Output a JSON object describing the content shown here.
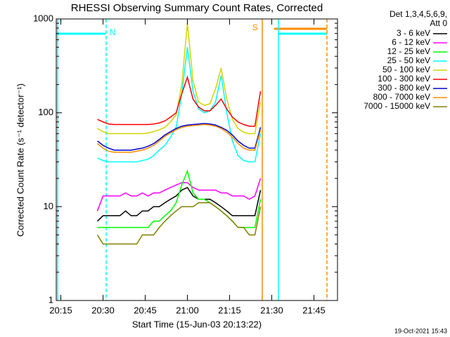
{
  "chart_data": {
    "type": "line",
    "title": "RHESSI Observing Summary Count Rates, Corrected",
    "x_label": "Start Time (15-Jun-03 20:13:22)",
    "y_label": "Corrected Count Rate (s⁻¹ detector⁻¹)",
    "legend_header": [
      "Det 1,3,4,5,6,9,",
      "Att 0"
    ],
    "footer": "19-Oct-2021 15:43",
    "log_y": true,
    "xlim": [
      1213.37,
      1313.37
    ],
    "xticks": [
      {
        "value": 1215,
        "label": "20:15"
      },
      {
        "value": 1230,
        "label": "20:30"
      },
      {
        "value": 1245,
        "label": "20:45"
      },
      {
        "value": 1260,
        "label": "21:00"
      },
      {
        "value": 1275,
        "label": "21:15"
      },
      {
        "value": 1290,
        "label": "21:30"
      },
      {
        "value": 1305,
        "label": "21:45"
      }
    ],
    "ylim": [
      1,
      1000
    ],
    "yticks": [
      1,
      10,
      100,
      1000
    ],
    "x": [
      1228,
      1230,
      1232,
      1234,
      1236,
      1238,
      1240,
      1242,
      1244,
      1246,
      1248,
      1250,
      1252,
      1254,
      1256,
      1258,
      1260,
      1262,
      1264,
      1266,
      1268,
      1270,
      1272,
      1274,
      1276,
      1278,
      1280,
      1282,
      1284,
      1286
    ],
    "series": [
      {
        "name": "3 - 6 keV",
        "color": "#000000",
        "values": [
          7,
          8,
          8,
          8,
          8,
          9,
          8,
          8,
          9,
          9,
          10,
          10,
          11,
          12,
          13,
          15,
          16,
          13,
          12,
          12,
          12,
          11,
          10,
          9,
          8,
          8,
          8,
          8,
          8,
          15
        ]
      },
      {
        "name": "6 - 12 keV",
        "color": "#ff00ff",
        "values": [
          9,
          13,
          13,
          13,
          13,
          14,
          13,
          13,
          14,
          13,
          14,
          14,
          15,
          16,
          17,
          18,
          18,
          16,
          15,
          15,
          15,
          15,
          14,
          14,
          13,
          13,
          13,
          12,
          13,
          20
        ]
      },
      {
        "name": "12 - 25 keV",
        "color": "#00ff00",
        "values": [
          6,
          6,
          6,
          6,
          6,
          6,
          6,
          6,
          6,
          6,
          7,
          7,
          8,
          9,
          11,
          17,
          24,
          14,
          12,
          12,
          11,
          10,
          9,
          8,
          7,
          6,
          6,
          6,
          6,
          12
        ]
      },
      {
        "name": "25 - 50 keV",
        "color": "#00ffff",
        "values": [
          33,
          31,
          30,
          30,
          30,
          30,
          30,
          30,
          31,
          32,
          35,
          40,
          45,
          55,
          70,
          160,
          500,
          170,
          110,
          100,
          105,
          130,
          250,
          100,
          50,
          35,
          31,
          30,
          30,
          60
        ]
      },
      {
        "name": "50 - 100 keV",
        "color": "#d4d400",
        "values": [
          68,
          63,
          60,
          60,
          60,
          60,
          60,
          60,
          60,
          61,
          63,
          66,
          70,
          80,
          95,
          200,
          900,
          220,
          130,
          120,
          125,
          180,
          300,
          140,
          85,
          68,
          62,
          60,
          60,
          130
        ]
      },
      {
        "name": "100 - 300 keV",
        "color": "#ff0000",
        "values": [
          85,
          80,
          76,
          75,
          75,
          75,
          75,
          75,
          75,
          75,
          76,
          78,
          82,
          90,
          100,
          160,
          240,
          140,
          115,
          105,
          105,
          120,
          140,
          110,
          90,
          80,
          75,
          72,
          72,
          170
        ]
      },
      {
        "name": "300 - 800 keV",
        "color": "#0000cc",
        "values": [
          50,
          45,
          42,
          40,
          40,
          40,
          40,
          41,
          42,
          44,
          47,
          52,
          58,
          63,
          68,
          72,
          74,
          75,
          76,
          77,
          76,
          74,
          70,
          65,
          58,
          50,
          45,
          42,
          42,
          70
        ]
      },
      {
        "name": "800 - 7000 keV",
        "color": "#ff8c00",
        "values": [
          47,
          42,
          39,
          38,
          38,
          38,
          38,
          39,
          40,
          42,
          45,
          50,
          56,
          61,
          66,
          70,
          72,
          73,
          74,
          75,
          74,
          72,
          68,
          62,
          55,
          47,
          42,
          40,
          40,
          65
        ]
      },
      {
        "name": "7000 - 15000 keV",
        "color": "#808000",
        "values": [
          5,
          4,
          4,
          4,
          4,
          4,
          4,
          4,
          5,
          5,
          5,
          6,
          7,
          8,
          9,
          10,
          10,
          10,
          11,
          11,
          11,
          10,
          9,
          8,
          7,
          6,
          6,
          5,
          5,
          10
        ]
      }
    ],
    "markers": [
      {
        "x": 1213.87,
        "color": "#00ffff",
        "dashed": false
      },
      {
        "x": 1231.12,
        "color": "#00ffff",
        "dashed": true
      },
      {
        "x": 1286.62,
        "color": "#ff8c00",
        "dashed": false
      },
      {
        "x": 1292.37,
        "color": "#00ffff",
        "dashed": false
      },
      {
        "x": 1309.62,
        "color": "#ff8c00",
        "dashed": true
      }
    ],
    "flag_bars": [
      {
        "start": 1213.37,
        "end": 1230.87,
        "color": "#00ffff"
      },
      {
        "start": 1290.87,
        "end": 1309.62,
        "color": "#ff8c00"
      },
      {
        "start": 1292.37,
        "end": 1309.62,
        "color": "#00ffff"
      }
    ],
    "flags": [
      {
        "label": "N",
        "x": 1233.4,
        "color": "#00ffff"
      },
      {
        "label": "S",
        "x": 1284.1,
        "color": "#ff8c00"
      }
    ]
  }
}
